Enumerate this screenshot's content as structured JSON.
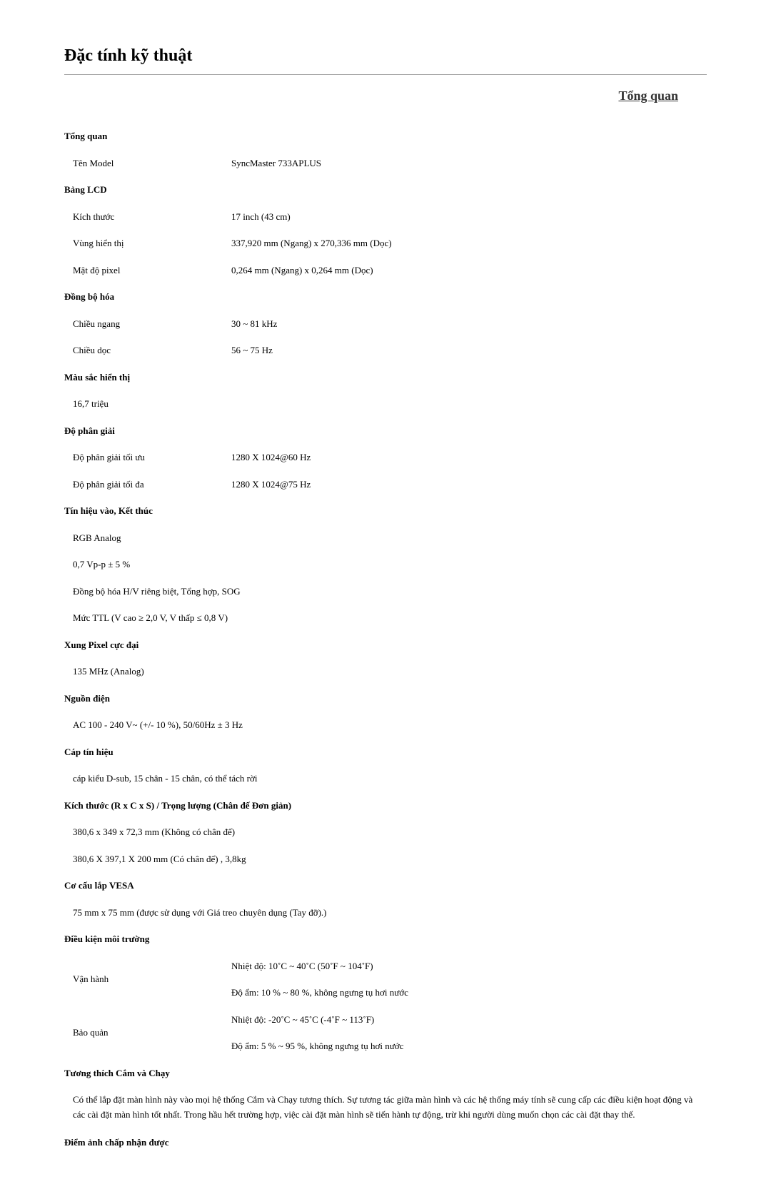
{
  "page": {
    "main_title": "Đặc tính kỹ thuật",
    "tab_title": "Tổng quan"
  },
  "sections": {
    "general": {
      "heading": "Tổng quan",
      "rows": [
        {
          "label": "Tên Model",
          "value": "SyncMaster 733APLUS"
        }
      ]
    },
    "lcd": {
      "heading": "Bảng LCD",
      "rows": [
        {
          "label": "Kích thước",
          "value": "17 inch (43 cm)"
        },
        {
          "label": "Vùng hiển thị",
          "value": "337,920 mm (Ngang) x 270,336 mm (Dọc)"
        },
        {
          "label": "Mật độ pixel",
          "value": "0,264 mm (Ngang) x 0,264 mm (Dọc)"
        }
      ]
    },
    "sync": {
      "heading": "Đồng bộ hóa",
      "rows": [
        {
          "label": "Chiều ngang",
          "value": "30 ~ 81 kHz"
        },
        {
          "label": "Chiều dọc",
          "value": "56 ~ 75 Hz"
        }
      ]
    },
    "color": {
      "heading": "Màu sắc hiển thị",
      "rows_full": [
        "16,7 triệu"
      ]
    },
    "res": {
      "heading": "Độ phân giải",
      "rows": [
        {
          "label": "Độ phân giải tối ưu",
          "value": "1280 X 1024@60 Hz"
        },
        {
          "label": "Độ phân giải tối đa",
          "value": "1280 X 1024@75 Hz"
        }
      ]
    },
    "signal": {
      "heading": "Tín hiệu vào, Kết thúc",
      "rows_full": [
        "RGB Analog",
        "0,7 Vp-p ± 5 %",
        "Đồng bộ hóa H/V riêng biệt, Tổng hợp, SOG",
        "Mức TTL (V cao ≥ 2,0 V, V thấp ≤ 0,8 V)"
      ]
    },
    "pixel_clock": {
      "heading": "Xung Pixel cực đại",
      "rows_full": [
        "135 MHz (Analog)"
      ]
    },
    "power": {
      "heading": "Nguồn điện",
      "rows_full": [
        "AC 100 - 240 V~ (+/- 10 %), 50/60Hz ± 3 Hz"
      ]
    },
    "cable": {
      "heading": "Cáp tín hiệu",
      "rows_full": [
        "cáp kiểu D-sub, 15 chân - 15 chân, có thể tách rời"
      ]
    },
    "dim": {
      "heading": "Kích thước (R x C x S) / Trọng lượng (Chân đế Đơn giản)",
      "rows_full": [
        "380,6 x 349 x 72,3 mm (Không có chân đế)",
        "380,6 X 397,1 X 200 mm (Có chân đế) , 3,8kg"
      ]
    },
    "vesa": {
      "heading": "Cơ cấu lắp VESA",
      "rows_full": [
        "75 mm x 75 mm (được sử dụng với Giá treo chuyên dụng (Tay đỡ).)"
      ]
    },
    "env": {
      "heading": "Điều kiện môi trường",
      "rows_grouped": [
        {
          "label": "Vận hành",
          "temp": "Nhiệt độ: 10˚C ~ 40˚C (50˚F ~ 104˚F)",
          "humid": "Độ ẩm: 10 % ~ 80 %, không ngưng tụ hơi nước"
        },
        {
          "label": "Bảo quản",
          "temp": "Nhiệt độ: -20˚C ~ 45˚C (-4˚F ~ 113˚F)",
          "humid": "Độ ẩm: 5 % ~ 95 %, không ngưng tụ hơi nước"
        }
      ]
    },
    "pnp": {
      "heading": "Tương thích Cắm và Chạy",
      "body": "Có thể lắp đặt màn hình này vào mọi hệ thống Cắm và Chạy tương thích. Sự tương tác giữa màn hình và các hệ thống máy tính sẽ cung cấp các điều kiện hoạt động và các cài đặt màn hình tốt nhất. Trong hầu hết trường hợp, việc cài đặt màn hình sẽ tiến hành tự động, trừ khi người dùng muốn chọn các cài đặt thay thế."
    },
    "dots": {
      "heading": "Điểm ảnh chấp nhận được"
    }
  }
}
